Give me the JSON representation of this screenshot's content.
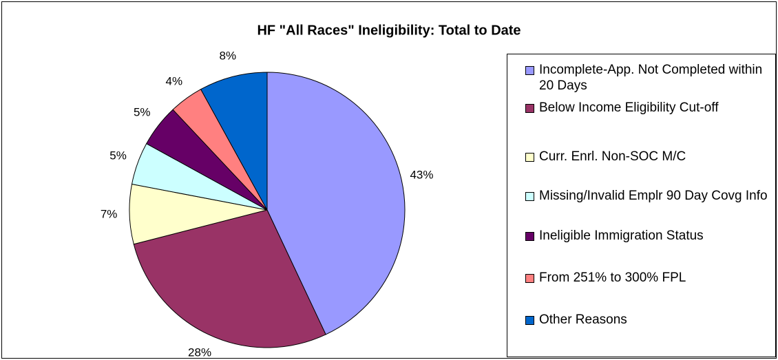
{
  "chart_data": {
    "type": "pie",
    "title": "HF \"All Races\" Ineligibility: Total to Date",
    "categories": [
      "Incomplete-App. Not Completed within 20 Days",
      "Below Income Eligibility Cut-off",
      "Curr. Enrl. Non-SOC M/C",
      "Missing/Invalid Emplr 90 Day Covg Info",
      "Ineligible Immigration Status",
      "From 251% to 300% FPL",
      "Other Reasons"
    ],
    "values": [
      43,
      28,
      7,
      5,
      5,
      4,
      8
    ],
    "value_labels": [
      "43%",
      "28%",
      "7%",
      "5%",
      "5%",
      "4%",
      "8%"
    ],
    "colors": [
      "#9999ff",
      "#993366",
      "#ffffcc",
      "#ccffff",
      "#660066",
      "#ff8080",
      "#0066cc"
    ],
    "legend": "right"
  }
}
